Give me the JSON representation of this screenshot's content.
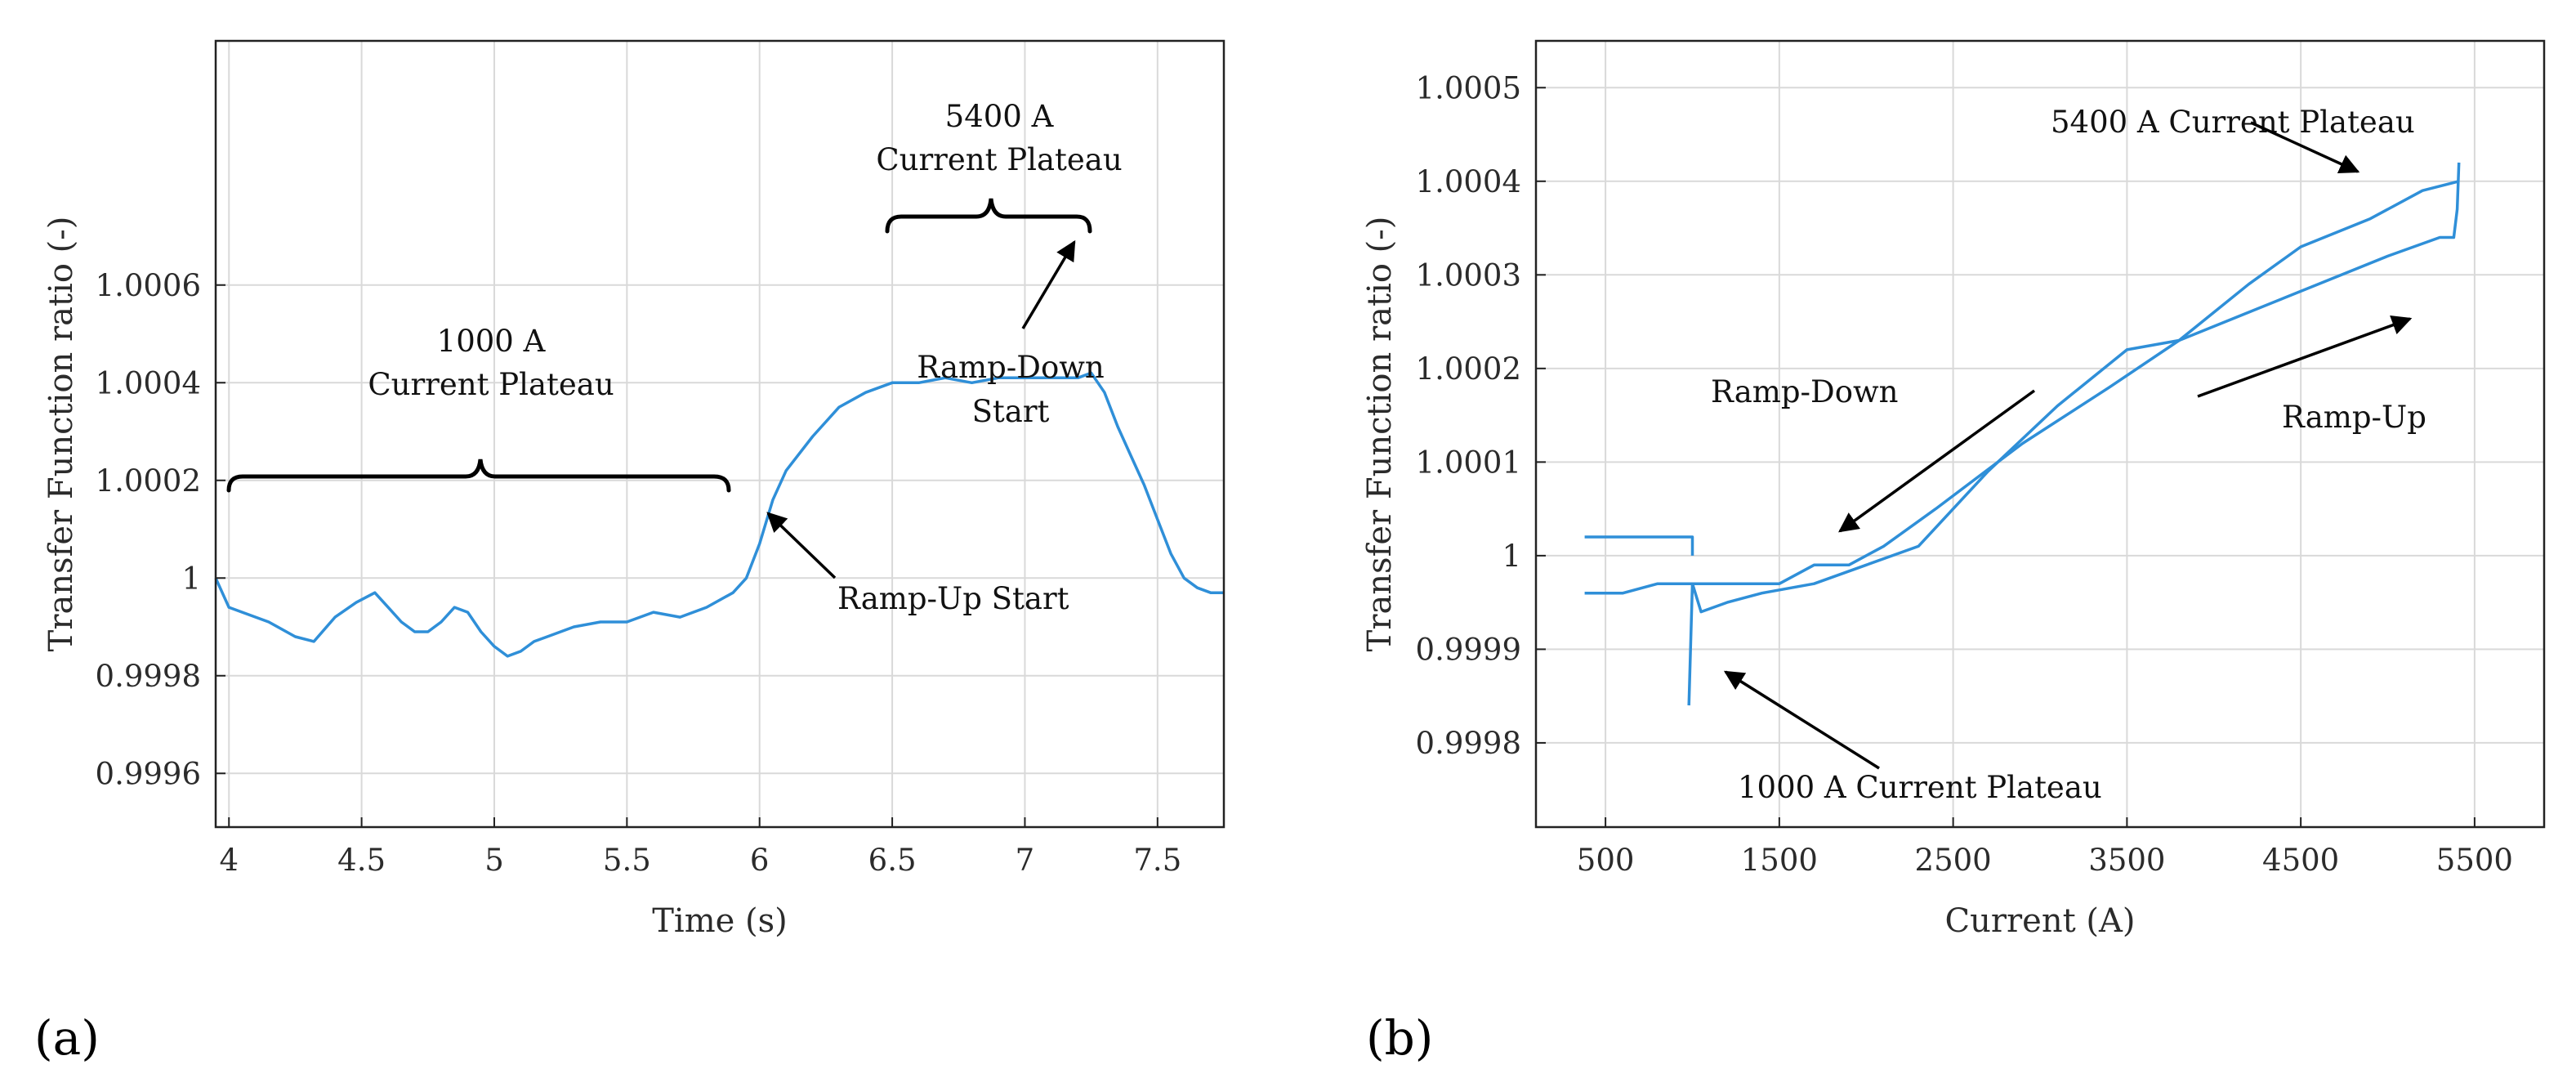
{
  "colors": {
    "series": "#2f8fd8",
    "axis": "#222222",
    "grid": "#d9d9d9"
  },
  "chart_data": [
    {
      "type": "line",
      "panel_label": "(a)",
      "xlabel": "Time (s)",
      "ylabel": "Transfer Function ratio (-)",
      "xlim": [
        3.95,
        7.75
      ],
      "ylim": [
        0.99949,
        1.0011
      ],
      "xticks": [
        4,
        4.5,
        5,
        5.5,
        6,
        6.5,
        7,
        7.5
      ],
      "xtick_labels": [
        "4",
        "4.5",
        "5",
        "5.5",
        "6",
        "6.5",
        "7",
        "7.5"
      ],
      "yticks": [
        0.9996,
        0.9998,
        1.0,
        1.0002,
        1.0004,
        1.0006
      ],
      "ytick_labels": [
        "0.9996",
        "0.9998",
        "1",
        "1.0002",
        "1.0004",
        "1.0006"
      ],
      "grid": true,
      "series": [
        {
          "name": "Transfer Function ratio",
          "x": [
            3.95,
            4.0,
            4.05,
            4.15,
            4.25,
            4.32,
            4.4,
            4.48,
            4.55,
            4.6,
            4.65,
            4.7,
            4.75,
            4.8,
            4.85,
            4.9,
            4.95,
            5.0,
            5.05,
            5.1,
            5.15,
            5.2,
            5.3,
            5.4,
            5.5,
            5.6,
            5.7,
            5.8,
            5.9,
            5.95,
            6.0,
            6.05,
            6.1,
            6.2,
            6.3,
            6.4,
            6.5,
            6.6,
            6.7,
            6.8,
            6.9,
            7.0,
            7.1,
            7.2,
            7.25,
            7.3,
            7.35,
            7.4,
            7.45,
            7.5,
            7.55,
            7.6,
            7.65,
            7.7,
            7.75
          ],
          "y": [
            1.0,
            0.99994,
            0.99993,
            0.99991,
            0.99988,
            0.99987,
            0.99992,
            0.99995,
            0.99997,
            0.99994,
            0.99991,
            0.99989,
            0.99989,
            0.99991,
            0.99994,
            0.99993,
            0.99989,
            0.99986,
            0.99984,
            0.99985,
            0.99987,
            0.99988,
            0.9999,
            0.99991,
            0.99991,
            0.99993,
            0.99992,
            0.99994,
            0.99997,
            1.0,
            1.00007,
            1.00016,
            1.00022,
            1.00029,
            1.00035,
            1.00038,
            1.0004,
            1.0004,
            1.00041,
            1.0004,
            1.00041,
            1.00041,
            1.00041,
            1.00041,
            1.00042,
            1.00038,
            1.00031,
            1.00025,
            1.00019,
            1.00012,
            1.00005,
            1.0,
            0.99998,
            0.99997,
            0.99997
          ]
        }
      ],
      "annotations": [
        {
          "lines": [
            "1000 A",
            "Current Plateau"
          ]
        },
        {
          "lines": [
            "5400 A",
            "Current Plateau"
          ]
        },
        {
          "lines": [
            "Ramp-Down",
            "Start"
          ]
        },
        {
          "lines": [
            "Ramp-Up Start"
          ]
        }
      ]
    },
    {
      "type": "line",
      "panel_label": "(b)",
      "xlabel": "Current (A)",
      "ylabel": "Transfer Function ratio (-)",
      "xlim": [
        100,
        5900
      ],
      "ylim": [
        0.99971,
        1.00055
      ],
      "xticks": [
        500,
        1500,
        2500,
        3500,
        4500,
        5500
      ],
      "xtick_labels": [
        "500",
        "1500",
        "2500",
        "3500",
        "4500",
        "5500"
      ],
      "yticks": [
        0.9998,
        0.9999,
        1.0,
        1.0001,
        1.0002,
        1.0003,
        1.0004,
        1.0005
      ],
      "ytick_labels": [
        "0.9998",
        "0.9999",
        "1",
        "1.0001",
        "1.0002",
        "1.0003",
        "1.0004",
        "1.0005"
      ],
      "grid": true,
      "series": [
        {
          "name": "Ramp-Up",
          "x": [
            380,
            600,
            800,
            950,
            1000,
            1050,
            1200,
            1400,
            1700,
            2000,
            2300,
            2700,
            3100,
            3500,
            3800,
            4200,
            4600,
            5000,
            5300,
            5380,
            5400,
            5410
          ],
          "y": [
            0.99996,
            0.99996,
            0.99997,
            0.99997,
            0.99997,
            0.99994,
            0.99995,
            0.99996,
            0.99997,
            0.99999,
            1.00001,
            1.00009,
            1.00016,
            1.00022,
            1.00023,
            1.00026,
            1.00029,
            1.00032,
            1.00034,
            1.00034,
            1.00037,
            1.00042
          ]
        },
        {
          "name": "Ramp-Down",
          "x": [
            5410,
            5200,
            4900,
            4500,
            4200,
            3800,
            3400,
            2900,
            2400,
            2100,
            1900,
            1700,
            1500,
            1300,
            1100,
            1000,
            980
          ],
          "y": [
            1.0004,
            1.00039,
            1.00036,
            1.00033,
            1.00029,
            1.00023,
            1.00018,
            1.00012,
            1.00005,
            1.00001,
            0.99999,
            0.99999,
            0.99997,
            0.99997,
            0.99997,
            0.99997,
            0.99984
          ]
        },
        {
          "name": "1000 A plateau",
          "x": [
            380,
            450,
            600,
            800,
            950,
            1000,
            1000
          ],
          "y": [
            1.00002,
            1.00002,
            1.00002,
            1.00002,
            1.00002,
            1.00002,
            1.0
          ]
        }
      ],
      "annotations": [
        {
          "lines": [
            "5400 A Current Plateau"
          ]
        },
        {
          "lines": [
            "Ramp-Down"
          ]
        },
        {
          "lines": [
            "Ramp-Up"
          ]
        },
        {
          "lines": [
            "1000 A Current Plateau"
          ]
        }
      ]
    }
  ]
}
